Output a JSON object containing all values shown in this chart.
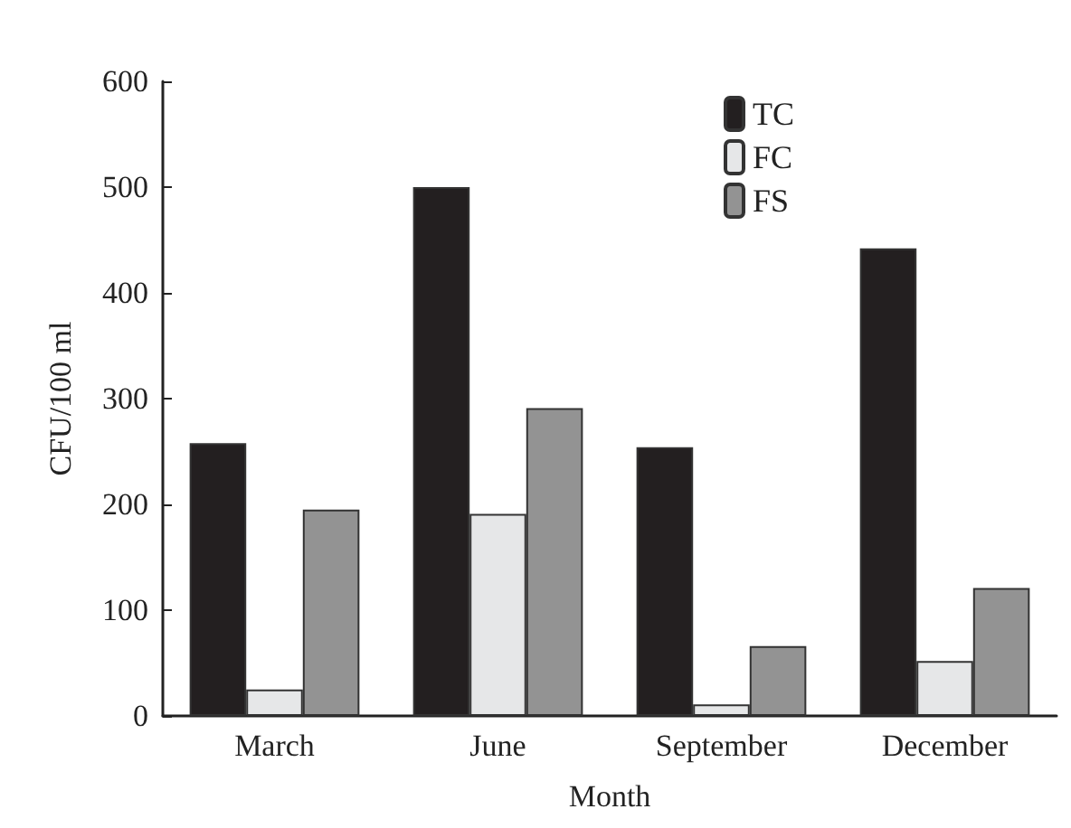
{
  "chart_data": {
    "type": "bar",
    "xlabel": "Month",
    "ylabel": "CFU/100 ml",
    "categories": [
      "March",
      "June",
      "September",
      "December"
    ],
    "series": [
      {
        "name": "TC",
        "color": "#231f20",
        "values": [
          258,
          500,
          254,
          442
        ]
      },
      {
        "name": "FC",
        "color": "#e6e7e8",
        "values": [
          25,
          191,
          11,
          52
        ]
      },
      {
        "name": "FS",
        "color": "#939393",
        "values": [
          195,
          291,
          66,
          121
        ]
      }
    ],
    "ylim": [
      0,
      600
    ],
    "yticks": [
      0,
      100,
      200,
      300,
      400,
      500,
      600
    ],
    "grid": false,
    "legend": "top right"
  }
}
